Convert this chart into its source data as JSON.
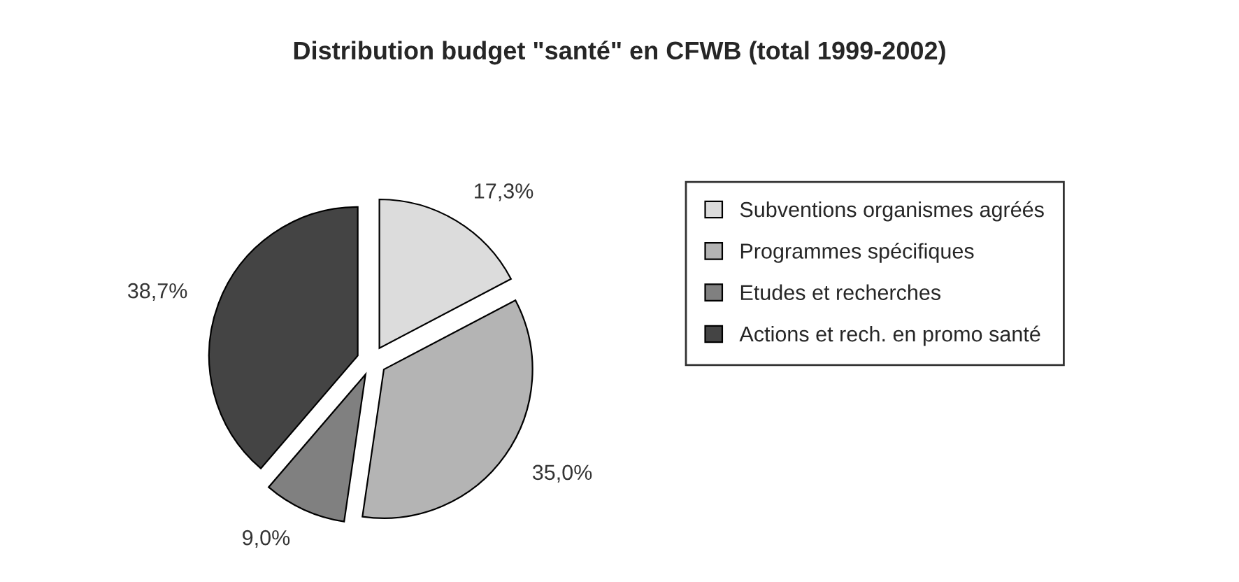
{
  "chart_data": {
    "type": "pie",
    "title": "Distribution budget \"santé\" en CFWB (total 1999-2002)",
    "categories": [
      "Subventions organismes agréés",
      "Programmes spécifiques",
      "Etudes et recherches",
      "Actions et rech. en promo santé"
    ],
    "values": [
      17.3,
      35.0,
      9.0,
      38.7
    ],
    "value_labels": [
      "17,3%",
      "35,0%",
      "9,0%",
      "38,7%"
    ],
    "colors": [
      "#dcdcdc",
      "#b4b4b4",
      "#808080",
      "#444444"
    ],
    "legend": "right"
  }
}
